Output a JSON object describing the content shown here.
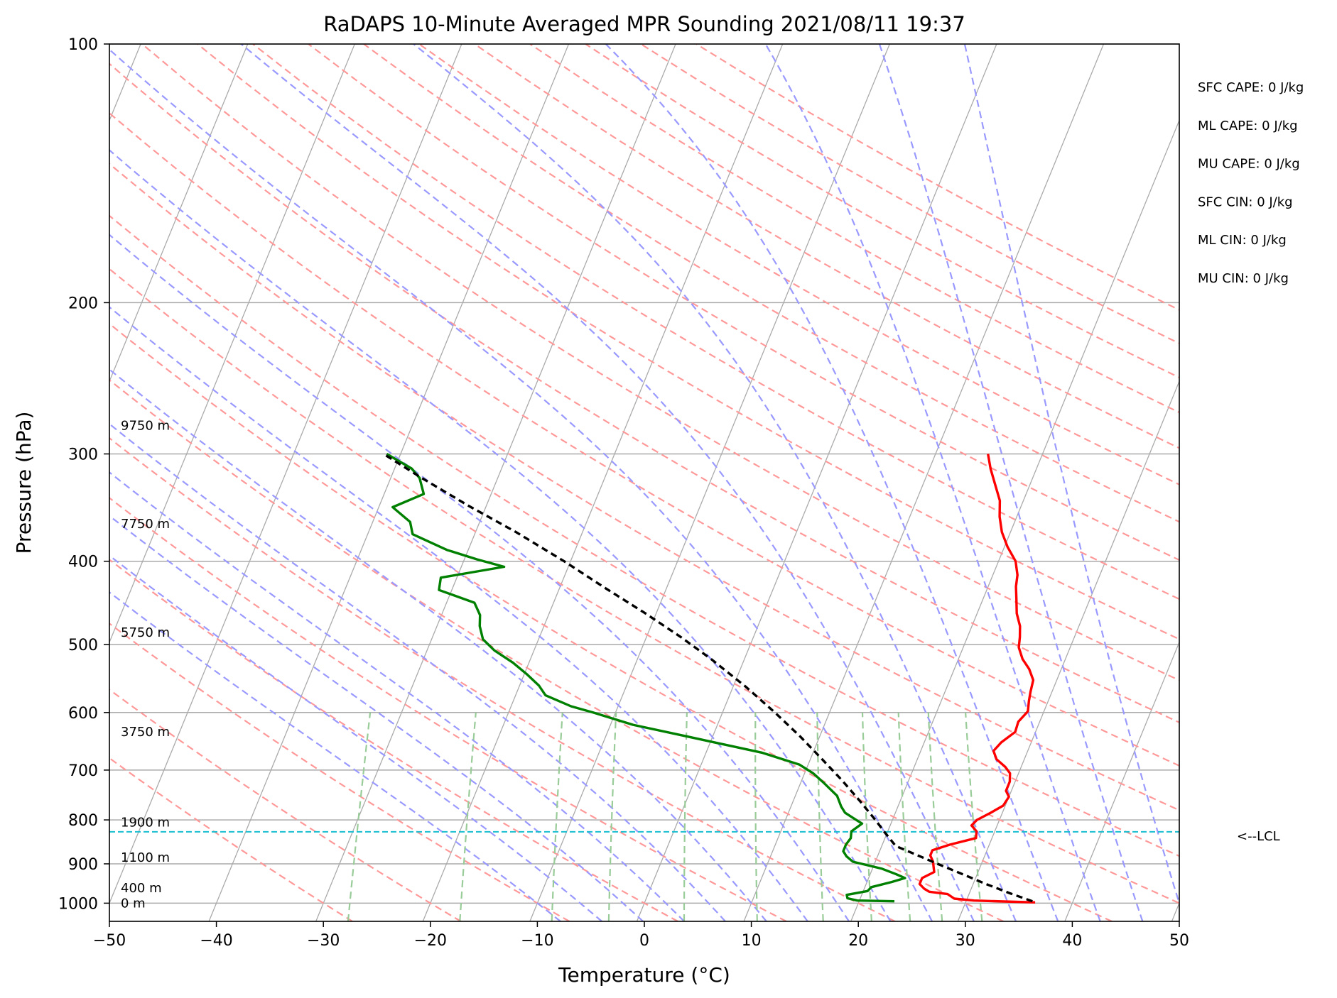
{
  "chart_data": {
    "type": "line",
    "subtype": "skew-t log-p sounding",
    "title": "RaDAPS 10-Minute Averaged MPR Sounding 2021/08/11 19:37",
    "xlabel": "Temperature (°C)",
    "ylabel": "Pressure (hPa)",
    "xlim": [
      -50,
      50
    ],
    "ylim": [
      1050,
      100
    ],
    "yscale": "log",
    "x_ticks": [
      -50,
      -40,
      -30,
      -20,
      -10,
      0,
      10,
      20,
      30,
      40,
      50
    ],
    "x_tick_labels": [
      "−50",
      "−40",
      "−30",
      "−20",
      "−10",
      "0",
      "10",
      "20",
      "30",
      "40",
      "50"
    ],
    "y_ticks": [
      100,
      200,
      300,
      400,
      500,
      600,
      700,
      800,
      900,
      1000
    ],
    "y_tick_labels": [
      "100",
      "200",
      "300",
      "400",
      "500",
      "600",
      "700",
      "800",
      "900",
      "1000"
    ],
    "grid": true,
    "series": [
      {
        "role": "temperature",
        "color": "#ff0000",
        "points": [
          [
            998,
            36.5
          ],
          [
            993,
            30.7
          ],
          [
            988,
            28.8
          ],
          [
            976,
            28.0
          ],
          [
            970,
            26.2
          ],
          [
            962,
            25.6
          ],
          [
            950,
            25.0
          ],
          [
            935,
            25.0
          ],
          [
            920,
            25.9
          ],
          [
            905,
            25.6
          ],
          [
            895,
            25.4
          ],
          [
            880,
            24.9
          ],
          [
            868,
            24.9
          ],
          [
            855,
            26.3
          ],
          [
            840,
            28.5
          ],
          [
            825,
            28.3
          ],
          [
            812,
            27.6
          ],
          [
            800,
            27.9
          ],
          [
            785,
            28.9
          ],
          [
            770,
            29.8
          ],
          [
            752,
            30.0
          ],
          [
            740,
            29.5
          ],
          [
            722,
            29.5
          ],
          [
            706,
            29.2
          ],
          [
            694,
            28.5
          ],
          [
            680,
            27.4
          ],
          [
            665,
            26.8
          ],
          [
            650,
            27.2
          ],
          [
            632,
            28.1
          ],
          [
            615,
            28.0
          ],
          [
            598,
            28.5
          ],
          [
            582,
            28.2
          ],
          [
            568,
            28.0
          ],
          [
            550,
            27.8
          ],
          [
            534,
            27.0
          ],
          [
            520,
            26.0
          ],
          [
            504,
            25.2
          ],
          [
            490,
            24.9
          ],
          [
            476,
            24.5
          ],
          [
            460,
            23.7
          ],
          [
            442,
            23.1
          ],
          [
            428,
            22.6
          ],
          [
            415,
            22.3
          ],
          [
            400,
            21.6
          ],
          [
            385,
            20.3
          ],
          [
            370,
            19.2
          ],
          [
            355,
            18.4
          ],
          [
            340,
            17.8
          ],
          [
            325,
            16.7
          ],
          [
            312,
            15.7
          ],
          [
            300,
            14.9
          ]
        ]
      },
      {
        "role": "dewpoint",
        "color": "#008000",
        "points": [
          [
            995,
            23.3
          ],
          [
            993,
            19.8
          ],
          [
            987,
            18.8
          ],
          [
            978,
            18.6
          ],
          [
            968,
            20.4
          ],
          [
            958,
            20.6
          ],
          [
            945,
            22.3
          ],
          [
            935,
            23.4
          ],
          [
            925,
            22.4
          ],
          [
            912,
            20.9
          ],
          [
            895,
            17.9
          ],
          [
            882,
            17.1
          ],
          [
            870,
            16.6
          ],
          [
            855,
            16.6
          ],
          [
            840,
            16.8
          ],
          [
            825,
            16.6
          ],
          [
            808,
            17.3
          ],
          [
            800,
            16.6
          ],
          [
            785,
            15.3
          ],
          [
            772,
            14.7
          ],
          [
            750,
            13.9
          ],
          [
            725,
            12.2
          ],
          [
            706,
            10.8
          ],
          [
            690,
            9.2
          ],
          [
            668,
            5.2
          ],
          [
            640,
            -2.3
          ],
          [
            620,
            -7.9
          ],
          [
            600,
            -12.1
          ],
          [
            590,
            -14.4
          ],
          [
            573,
            -17.2
          ],
          [
            558,
            -18.2
          ],
          [
            541,
            -19.8
          ],
          [
            525,
            -21.5
          ],
          [
            508,
            -23.7
          ],
          [
            493,
            -25.2
          ],
          [
            476,
            -26.0
          ],
          [
            462,
            -26.4
          ],
          [
            447,
            -27.4
          ],
          [
            432,
            -31.2
          ],
          [
            418,
            -31.5
          ],
          [
            406,
            -26.0
          ],
          [
            398,
            -28.8
          ],
          [
            388,
            -32.0
          ],
          [
            372,
            -35.8
          ],
          [
            360,
            -36.5
          ],
          [
            346,
            -38.7
          ],
          [
            334,
            -36.3
          ],
          [
            320,
            -37.3
          ],
          [
            312,
            -38.4
          ],
          [
            300,
            -41.3
          ]
        ]
      },
      {
        "role": "parcel",
        "color": "#000000",
        "points": [
          [
            995,
            36.2
          ],
          [
            974,
            33.8
          ],
          [
            950,
            31.2
          ],
          [
            925,
            28.6
          ],
          [
            900,
            25.9
          ],
          [
            875,
            23.2
          ],
          [
            858,
            21.3
          ],
          [
            826,
            19.7
          ],
          [
            800,
            18.4
          ],
          [
            760,
            16.2
          ],
          [
            720,
            13.8
          ],
          [
            680,
            11.1
          ],
          [
            640,
            8.2
          ],
          [
            600,
            4.9
          ],
          [
            560,
            1.2
          ],
          [
            520,
            -3.1
          ],
          [
            490,
            -6.8
          ],
          [
            460,
            -11.0
          ],
          [
            430,
            -15.7
          ],
          [
            400,
            -20.6
          ],
          [
            370,
            -26.2
          ],
          [
            345,
            -31.6
          ],
          [
            320,
            -37.1
          ],
          [
            300,
            -41.6
          ]
        ]
      }
    ],
    "lcl": {
      "pressure": 826,
      "label": "<--LCL",
      "color": "#17becf"
    },
    "height_labels": [
      {
        "pressure": 1000,
        "label": "0 m"
      },
      {
        "pressure": 960,
        "label": "400 m"
      },
      {
        "pressure": 885,
        "label": "1100 m"
      },
      {
        "pressure": 805,
        "label": "1900 m"
      },
      {
        "pressure": 632,
        "label": "3750 m"
      },
      {
        "pressure": 484,
        "label": "5750 m"
      },
      {
        "pressure": 362,
        "label": "7750 m"
      },
      {
        "pressure": 278,
        "label": "9750 m"
      }
    ],
    "indices": [
      "SFC CAPE: 0 J/kg",
      "ML CAPE: 0 J/kg",
      "MU CAPE: 0 J/kg",
      "SFC CIN: 0 J/kg",
      "ML CIN: 0 J/kg",
      "MU CIN: 0 J/kg"
    ],
    "background_line_colors": {
      "isotherm": "#aaaaaa",
      "dry_adiabat": "#ff9999",
      "moist_adiabat": "#9999ff",
      "mixing_ratio": "#99cc99"
    }
  }
}
